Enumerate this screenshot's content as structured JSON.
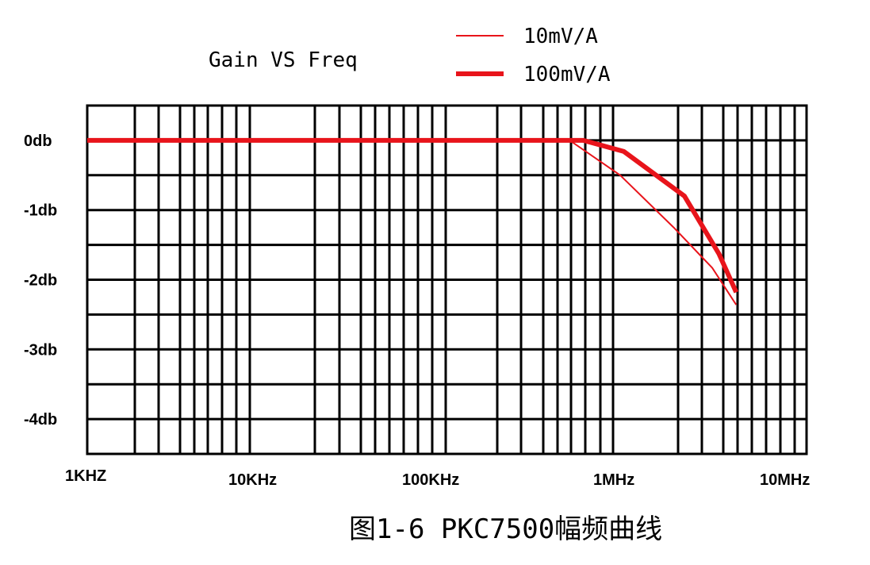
{
  "chart_data": {
    "type": "line",
    "title": "Gain VS Freq",
    "caption": "图1-6 PKC7500幅频曲线",
    "x_scale": "log",
    "xlim": [
      1000,
      10000000
    ],
    "ylim": [
      -4.5,
      0.5
    ],
    "grid": true,
    "legend_position": "top-right",
    "x_tick_labels": [
      "1KHZ",
      "10KHz",
      "100KHz",
      "1MHz",
      "10MHz"
    ],
    "x_ticks": [
      1000,
      10000,
      100000,
      1000000,
      10000000
    ],
    "y_tick_labels": [
      "0db",
      "-1db",
      "-2db",
      "-3db",
      "-4db"
    ],
    "y_ticks": [
      0,
      -1,
      -2,
      -3,
      -4
    ],
    "series": [
      {
        "name": "10mV/A",
        "color": "#e8141b",
        "style": "thin",
        "x": [
          1000,
          520000,
          1000000,
          2000000,
          3300000,
          4500000
        ],
        "y": [
          0,
          0,
          -0.5,
          -1.25,
          -1.83,
          -2.36
        ]
      },
      {
        "name": "100mV/A",
        "color": "#e8141b",
        "style": "thick",
        "x": [
          1000,
          620000,
          1050000,
          2300000,
          3600000,
          4500000
        ],
        "y": [
          0,
          0,
          -0.16,
          -0.8,
          -1.63,
          -2.18
        ]
      }
    ]
  }
}
